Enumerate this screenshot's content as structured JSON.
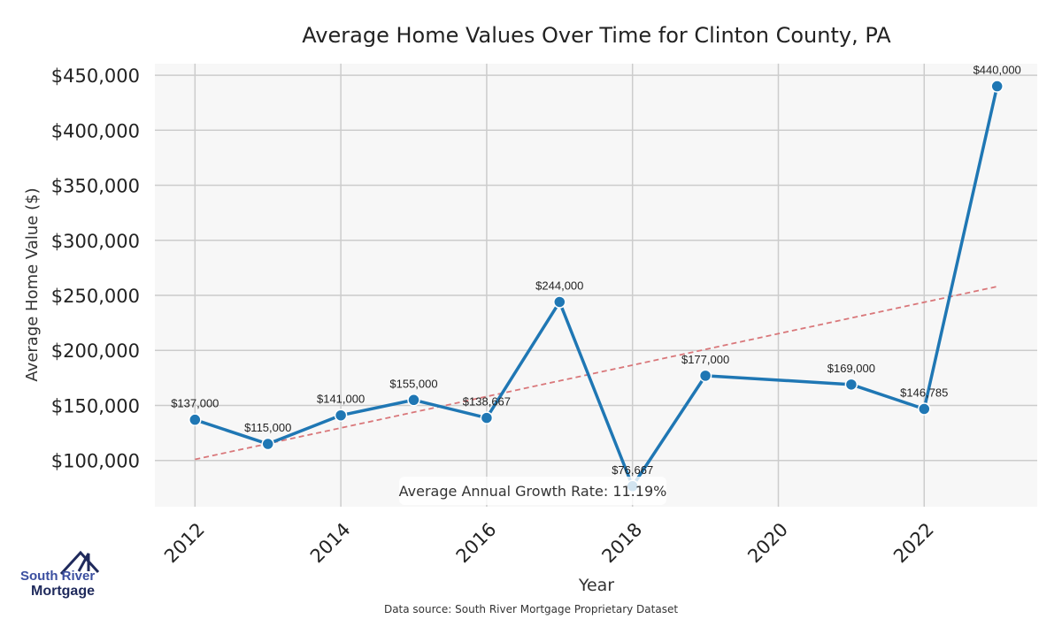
{
  "chart_data": {
    "type": "line",
    "title": "Average Home Values Over Time for Clinton County, PA",
    "xlabel": "Year",
    "ylabel": "Average Home Value ($)",
    "x": [
      2012,
      2013,
      2014,
      2015,
      2016,
      2017,
      2018,
      2019,
      2021,
      2022,
      2023
    ],
    "series": [
      {
        "values": [
          137000,
          115000,
          141000,
          155000,
          138667,
          244000,
          76667,
          177000,
          169000,
          146785,
          440000
        ],
        "labels": [
          "$137,000",
          "$115,000",
          "$141,000",
          "$155,000",
          "$138,667",
          "$244,000",
          "$76,667",
          "$177,000",
          "$169,000",
          "$146,785",
          "$440,000"
        ],
        "color": "#1f77b4"
      }
    ],
    "trendline": {
      "x": [
        2012,
        2023
      ],
      "y": [
        101000,
        258000
      ],
      "color": "#d9777a",
      "style": "dashed"
    },
    "xticks": [
      2012,
      2014,
      2016,
      2018,
      2020,
      2022
    ],
    "xtick_labels": [
      "2012",
      "2014",
      "2016",
      "2018",
      "2020",
      "2022"
    ],
    "yticks": [
      100000,
      150000,
      200000,
      250000,
      300000,
      350000,
      400000,
      450000
    ],
    "ytick_labels": [
      "$100,000",
      "$150,000",
      "$200,000",
      "$250,000",
      "$300,000",
      "$350,000",
      "$400,000",
      "$450,000"
    ],
    "xlim": [
      2011.45,
      2023.55
    ],
    "ylim": [
      58000,
      460500
    ],
    "grid": true,
    "background": "#f7f7f7",
    "annotation": "Average Annual Growth Rate: 11.19%",
    "source": "Data source: South River Mortgage Proprietary Dataset"
  },
  "logo": {
    "line1": "South River",
    "line2": "Mortgage"
  }
}
